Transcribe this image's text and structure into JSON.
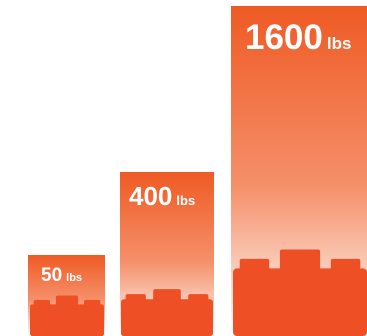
{
  "chart_data": {
    "type": "bar",
    "categories": [
      "50",
      "400",
      "1600"
    ],
    "values": [
      50,
      400,
      1600
    ],
    "unit": "lbs",
    "ylim": [
      0,
      1600
    ],
    "grid": false,
    "legend": "none",
    "title": "",
    "xlabel": "",
    "ylabel": "",
    "data_labels": [
      {
        "value": "50",
        "unit": "lbs"
      },
      {
        "value": "400",
        "unit": "lbs"
      },
      {
        "value": "1600",
        "unit": "lbs"
      }
    ]
  },
  "colors": {
    "bar_top": "#ef5a24",
    "bar_fade": "#fde6dc",
    "icon": "#ee4f24",
    "label": "#ffffff"
  },
  "icons": [
    "small-load-icon",
    "medium-load-icon",
    "large-load-icon"
  ]
}
